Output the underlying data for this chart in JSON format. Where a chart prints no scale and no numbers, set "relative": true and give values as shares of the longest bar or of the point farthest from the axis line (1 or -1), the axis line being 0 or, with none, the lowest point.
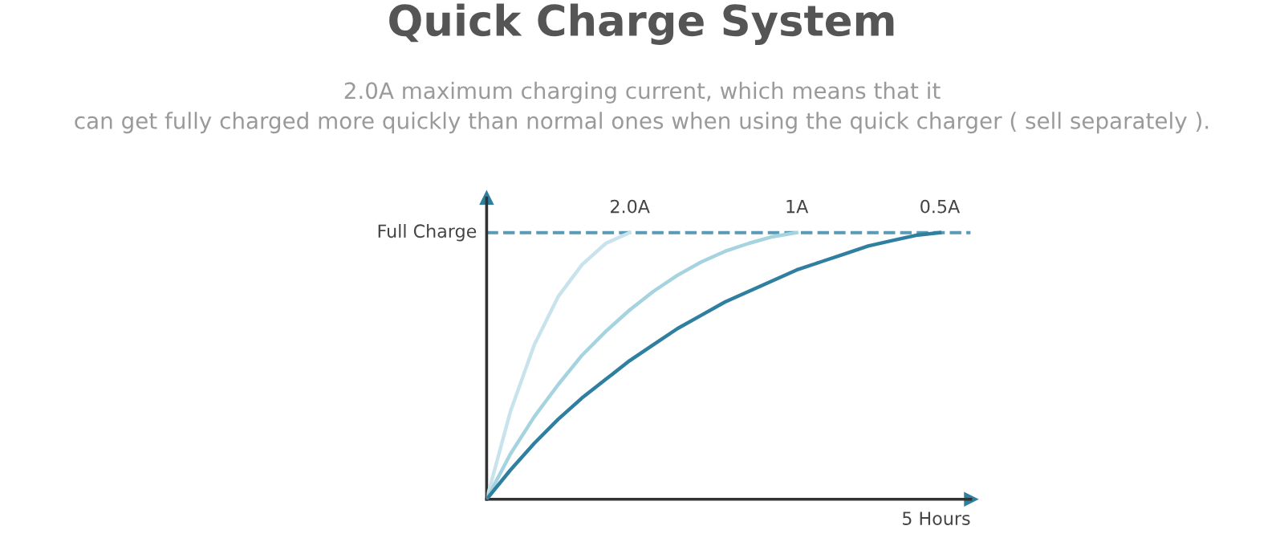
{
  "chart_data": {
    "type": "line",
    "title": "Quick Charge System",
    "subtitle": "2.0A maximum charging current, which means that it\ncan get fully charged more quickly than normal ones when using the quick charger ( sell separately ).",
    "xlabel": "5 Hours",
    "relative": true,
    "categories": [
      null,
      null,
      null,
      null,
      null,
      null,
      null,
      null,
      null,
      null,
      null,
      null,
      null,
      null,
      null,
      null,
      null,
      null,
      null,
      null,
      null
    ],
    "series": [
      {
        "name": "2.0A",
        "color": "#c9e3ec",
        "values": [
          0,
          0.33,
          0.58,
          0.76,
          0.88,
          0.96,
          1.0,
          null,
          null,
          null,
          null,
          null,
          null,
          null,
          null,
          null,
          null,
          null,
          null,
          null,
          null
        ]
      },
      {
        "name": "1A",
        "color": "#a6d3e0",
        "values": [
          0,
          0.17,
          0.31,
          0.43,
          0.54,
          0.63,
          0.71,
          0.78,
          0.84,
          0.89,
          0.93,
          0.96,
          0.985,
          1.0,
          null,
          null,
          null,
          null,
          null,
          null,
          null
        ]
      },
      {
        "name": "0.5A",
        "color": "#2f7fa0",
        "values": [
          0,
          0.11,
          0.21,
          0.3,
          0.38,
          0.45,
          0.52,
          0.58,
          0.64,
          0.69,
          0.74,
          0.78,
          0.82,
          0.86,
          0.89,
          0.92,
          0.95,
          0.97,
          0.99,
          1.0,
          null
        ]
      }
    ],
    "ref_lines": [
      {
        "axis": "y",
        "value": 1,
        "label": "Full Charge",
        "color": "#5a9ab5",
        "line_style": "dashed"
      }
    ],
    "legend": false,
    "marker": "none",
    "line_style": "solid"
  }
}
